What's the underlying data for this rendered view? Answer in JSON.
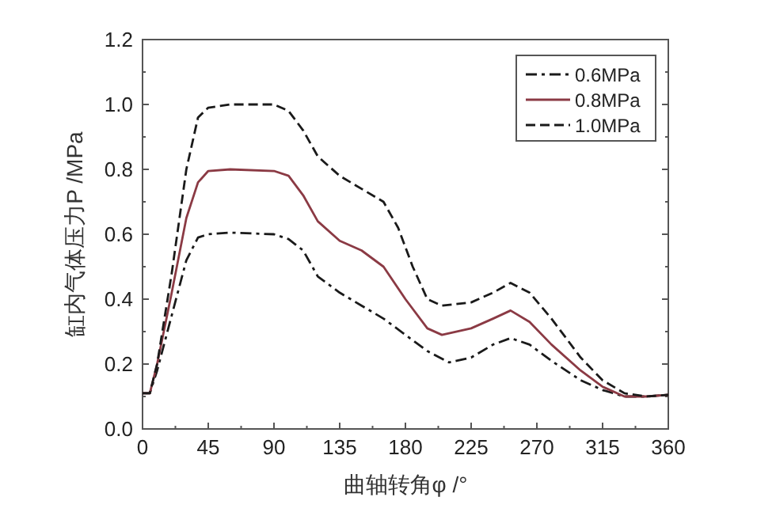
{
  "chart_data": {
    "type": "line",
    "xlabel": "曲轴转角φ /°",
    "ylabel": "缸内气体压力P /MPa",
    "xlim": [
      0,
      360
    ],
    "ylim": [
      0,
      1.2
    ],
    "xticks": [
      0,
      45,
      90,
      135,
      180,
      225,
      270,
      315,
      360
    ],
    "yticks": [
      {
        "value": 0,
        "label": "0.0"
      },
      0.2,
      0.4,
      0.6,
      0.8,
      {
        "value": 1,
        "label": "1.0"
      },
      {
        "value": 1.2,
        "label": "1.2"
      }
    ],
    "legend": "top right",
    "grid": false,
    "series": [
      {
        "name": "0.6MPa",
        "color": "#1a1a1a",
        "line_style": "dashdot",
        "x": [
          0,
          5,
          10,
          20,
          30,
          38,
          45,
          60,
          90,
          100,
          110,
          120,
          135,
          150,
          165,
          180,
          195,
          210,
          225,
          240,
          252,
          265,
          280,
          300,
          315,
          330,
          345,
          360
        ],
        "values": [
          0.11,
          0.11,
          0.18,
          0.35,
          0.52,
          0.59,
          0.6,
          0.605,
          0.6,
          0.585,
          0.55,
          0.47,
          0.42,
          0.38,
          0.34,
          0.29,
          0.24,
          0.205,
          0.22,
          0.26,
          0.28,
          0.26,
          0.21,
          0.15,
          0.12,
          0.1,
          0.1,
          0.105
        ]
      },
      {
        "name": "0.8MPa",
        "color": "#8b3a44",
        "line_style": "solid",
        "x": [
          0,
          5,
          10,
          20,
          30,
          38,
          45,
          60,
          90,
          100,
          110,
          120,
          135,
          150,
          165,
          180,
          195,
          205,
          225,
          240,
          252,
          265,
          280,
          300,
          315,
          330,
          345,
          360
        ],
        "values": [
          0.11,
          0.11,
          0.2,
          0.42,
          0.65,
          0.76,
          0.795,
          0.8,
          0.795,
          0.78,
          0.72,
          0.64,
          0.58,
          0.55,
          0.5,
          0.4,
          0.31,
          0.29,
          0.31,
          0.34,
          0.365,
          0.33,
          0.26,
          0.18,
          0.13,
          0.1,
          0.1,
          0.105
        ]
      },
      {
        "name": "1.0MPa",
        "color": "#1a1a1a",
        "line_style": "dashed",
        "x": [
          0,
          5,
          10,
          20,
          30,
          38,
          45,
          60,
          90,
          100,
          110,
          120,
          135,
          150,
          165,
          175,
          185,
          195,
          205,
          225,
          240,
          252,
          265,
          280,
          300,
          315,
          330,
          345,
          360
        ],
        "values": [
          0.11,
          0.11,
          0.2,
          0.48,
          0.8,
          0.96,
          0.99,
          1.0,
          1.0,
          0.98,
          0.92,
          0.84,
          0.78,
          0.74,
          0.7,
          0.62,
          0.5,
          0.4,
          0.38,
          0.39,
          0.42,
          0.45,
          0.42,
          0.34,
          0.22,
          0.15,
          0.11,
          0.1,
          0.105
        ]
      }
    ]
  }
}
